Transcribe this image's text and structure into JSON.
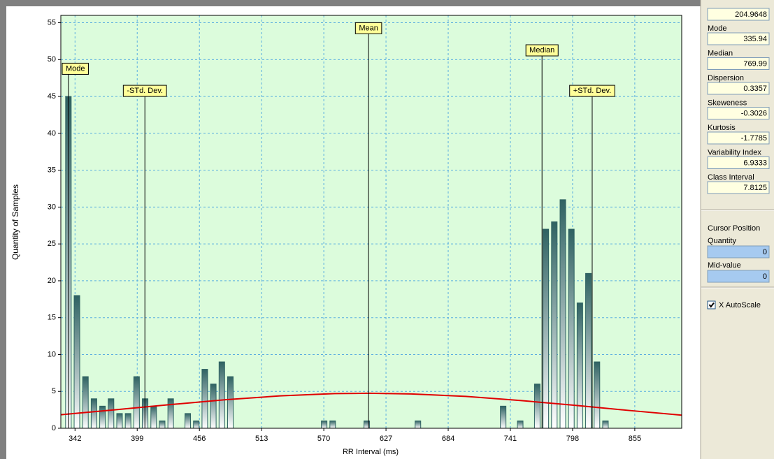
{
  "chart_data": {
    "type": "bar",
    "xlabel": "RR Interval (ms)",
    "ylabel": "Quantity of Samples",
    "x": [
      335.94,
      343.75,
      351.57,
      359.38,
      367.19,
      375.0,
      382.82,
      390.63,
      398.44,
      406.25,
      414.07,
      421.88,
      429.69,
      437.5,
      445.32,
      453.13,
      460.94,
      468.75,
      476.57,
      484.38,
      492.19,
      500.0,
      507.82,
      515.63,
      523.44,
      531.25,
      539.07,
      546.88,
      554.69,
      562.5,
      570.32,
      578.13,
      585.94,
      593.75,
      601.57,
      609.38,
      617.19,
      625.0,
      632.82,
      640.63,
      648.44,
      656.25,
      664.07,
      671.88,
      679.69,
      687.5,
      695.32,
      703.13,
      710.94,
      718.75,
      726.57,
      734.38,
      742.19,
      750.0,
      757.82,
      765.63,
      773.44,
      781.25,
      789.07,
      796.88,
      804.69,
      812.5,
      820.32,
      828.13,
      835.94,
      843.75,
      851.57,
      859.38,
      867.19,
      875.0,
      882.82,
      890.63
    ],
    "values": [
      45,
      18,
      7,
      4,
      3,
      4,
      2,
      2,
      7,
      4,
      3,
      1,
      4,
      0,
      2,
      1,
      8,
      6,
      9,
      7,
      0,
      0,
      0,
      0,
      0,
      0,
      0,
      0,
      0,
      0,
      1,
      1,
      0,
      0,
      0,
      1,
      0,
      0,
      0,
      0,
      0,
      1,
      0,
      0,
      0,
      0,
      0,
      0,
      0,
      0,
      0,
      3,
      0,
      1,
      0,
      6,
      27,
      28,
      31,
      27,
      17,
      21,
      9,
      1,
      0,
      0,
      0,
      0,
      0,
      0,
      0,
      0
    ],
    "color": "#2f6262",
    "curve": {
      "x": [
        329,
        380,
        430,
        480,
        530,
        580,
        611,
        650,
        700,
        750,
        800,
        850,
        898
      ],
      "values": [
        1.84,
        2.52,
        3.22,
        3.87,
        4.39,
        4.7,
        4.75,
        4.66,
        4.32,
        3.77,
        3.11,
        2.41,
        1.78
      ],
      "color": "#e00000"
    },
    "markers": [
      {
        "label": "Mode",
        "x": 335.94,
        "y": 48
      },
      {
        "label": "-STd. Dev.",
        "x": 406.04,
        "y": 45
      },
      {
        "label": "Mean",
        "x": 611,
        "y": 53.5
      },
      {
        "label": "Median",
        "x": 769.99,
        "y": 50.5
      },
      {
        "label": "+STd. Dev.",
        "x": 815.96,
        "y": 45
      }
    ],
    "xlim": [
      329,
      898
    ],
    "ylim": [
      0,
      56
    ],
    "xticks": [
      342,
      399,
      456,
      513,
      570,
      627,
      684,
      741,
      798,
      855
    ],
    "yticks": [
      0,
      5,
      10,
      15,
      20,
      25,
      30,
      35,
      40,
      45,
      50,
      55
    ],
    "grid": true
  },
  "side_panel": {
    "top_value": "204.9648",
    "stats": [
      {
        "label": "Mode",
        "value": "335.94",
        "color": "#008000"
      },
      {
        "label": "Median",
        "value": "769.99",
        "color": "#008000"
      },
      {
        "label": "Dispersion",
        "value": "0.3357",
        "color": "#0000ff"
      },
      {
        "label": "Skeweness",
        "value": "-0.3026",
        "color": "#0000ff"
      },
      {
        "label": "Kurtosis",
        "value": "-1.7785",
        "color": "#0000ff"
      },
      {
        "label": "Variability Index",
        "value": "6.9333",
        "color": "#0000ff"
      },
      {
        "label": "Class Interval",
        "value": "7.8125",
        "color": "#000000"
      }
    ],
    "cursor": {
      "title": "Cursor Position",
      "color": "#0000ff",
      "fields": [
        {
          "label": "Quantity",
          "value": "0"
        },
        {
          "label": "Mid-value",
          "value": "0"
        }
      ]
    },
    "autoscale": {
      "label": "X AutoScale",
      "checked": true,
      "color": "#c00000"
    }
  }
}
